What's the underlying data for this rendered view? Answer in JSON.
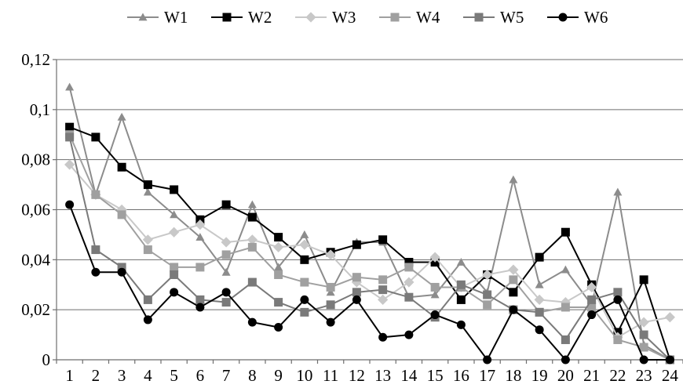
{
  "chart_data": {
    "type": "line",
    "title": "",
    "xlabel": "",
    "ylabel": "",
    "x": [
      1,
      2,
      3,
      4,
      5,
      6,
      7,
      8,
      9,
      10,
      11,
      12,
      13,
      14,
      15,
      16,
      17,
      18,
      19,
      20,
      21,
      22,
      23,
      24
    ],
    "ylim": [
      0,
      0.12
    ],
    "y_ticks": [
      0,
      0.02,
      0.04,
      0.06,
      0.08,
      0.1,
      0.12
    ],
    "y_tick_labels": [
      "0",
      "0,02",
      "0,04",
      "0,06",
      "0,08",
      "0,1",
      "0,12"
    ],
    "grid": "horizontal",
    "legend_position": "top",
    "series": [
      {
        "name": "W1",
        "color": "#8c8c8c",
        "marker": "triangle",
        "values": [
          0.109,
          0.066,
          0.097,
          0.067,
          0.058,
          0.049,
          0.035,
          0.062,
          0.037,
          0.05,
          0.027,
          0.047,
          0.047,
          0.025,
          0.026,
          0.039,
          0.027,
          0.072,
          0.03,
          0.036,
          0.022,
          0.067,
          0.006,
          0.0
        ]
      },
      {
        "name": "W2",
        "color": "#000000",
        "marker": "square",
        "values": [
          0.093,
          0.089,
          0.077,
          0.07,
          0.068,
          0.056,
          0.062,
          0.057,
          0.049,
          0.04,
          0.043,
          0.046,
          0.048,
          0.039,
          0.039,
          0.024,
          0.034,
          0.027,
          0.041,
          0.051,
          0.03,
          0.011,
          0.032,
          0.0
        ]
      },
      {
        "name": "W3",
        "color": "#c8c8c8",
        "marker": "diamond",
        "values": [
          0.078,
          0.066,
          0.06,
          0.048,
          0.051,
          0.054,
          0.047,
          0.048,
          0.045,
          0.046,
          0.042,
          0.031,
          0.024,
          0.031,
          0.041,
          0.029,
          0.034,
          0.036,
          0.024,
          0.023,
          0.029,
          0.009,
          0.015,
          0.017
        ]
      },
      {
        "name": "W4",
        "color": "#a0a0a0",
        "marker": "square",
        "values": [
          0.09,
          0.066,
          0.058,
          0.044,
          0.037,
          0.037,
          0.042,
          0.045,
          0.034,
          0.031,
          0.029,
          0.033,
          0.032,
          0.037,
          0.029,
          0.029,
          0.022,
          0.032,
          0.019,
          0.021,
          0.021,
          0.008,
          0.005,
          0.0
        ]
      },
      {
        "name": "W5",
        "color": "#7a7a7a",
        "marker": "square",
        "values": [
          0.089,
          0.044,
          0.037,
          0.024,
          0.034,
          0.024,
          0.023,
          0.031,
          0.023,
          0.019,
          0.022,
          0.027,
          0.028,
          0.025,
          0.017,
          0.03,
          0.026,
          0.02,
          0.019,
          0.008,
          0.024,
          0.027,
          0.01,
          0.0
        ]
      },
      {
        "name": "W6",
        "color": "#000000",
        "marker": "circle",
        "values": [
          0.062,
          0.035,
          0.035,
          0.016,
          0.027,
          0.021,
          0.027,
          0.015,
          0.013,
          0.024,
          0.015,
          0.024,
          0.009,
          0.01,
          0.018,
          0.014,
          0.0,
          0.02,
          0.012,
          0.0,
          0.018,
          0.024,
          0.0,
          0.0
        ]
      }
    ]
  }
}
